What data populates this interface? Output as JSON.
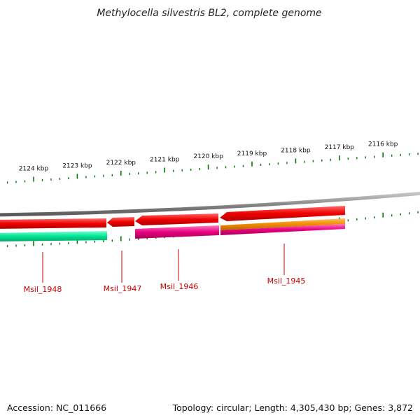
{
  "title": "Methylocella silvestris BL2, complete genome",
  "scale_labels": [
    {
      "text": "2124 kbp",
      "ticks": 1
    },
    {
      "text": "2123 kbp",
      "ticks": 1
    },
    {
      "text": "2122 kbp",
      "ticks": 1
    },
    {
      "text": "2121 kbp",
      "ticks": 1
    },
    {
      "text": "2120 kbp",
      "ticks": 1
    },
    {
      "text": "2119 kbp",
      "ticks": 1
    },
    {
      "text": "2118 kbp",
      "ticks": 1
    },
    {
      "text": "2117 kbp",
      "ticks": 1
    },
    {
      "text": "2116 kbp",
      "ticks": 1
    }
  ],
  "genes": [
    {
      "label": "Msil_1948",
      "strand": "reverse",
      "color": "#e00000",
      "feature_colors": [
        "#00e090"
      ]
    },
    {
      "label": "Msil_1947",
      "strand": "reverse",
      "color": "#e00000",
      "feature_colors": []
    },
    {
      "label": "Msil_1946",
      "strand": "reverse",
      "color": "#e00000",
      "feature_colors": [
        "#e0007a"
      ]
    },
    {
      "label": "Msil_1945",
      "strand": "reverse",
      "color": "#e00000",
      "feature_colors": [
        "#f08a00",
        "#e0007a"
      ]
    }
  ],
  "colors": {
    "backbone": "#8a8a8a",
    "ticks": "#007a00",
    "gene_label": "#cc0000"
  },
  "footer": {
    "accession": "Accession: NC_011666",
    "summary": "Topology: circular; Length: 4,305,430 bp; Genes: 3,872"
  }
}
